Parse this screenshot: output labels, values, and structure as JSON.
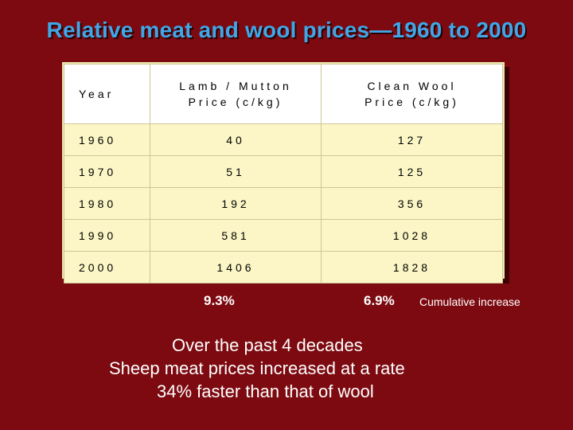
{
  "title": "Relative meat and wool prices—1960 to 2000",
  "table": {
    "headers": {
      "year": "Year",
      "lamb_line1": "Lamb / Mutton",
      "lamb_line2": "Price (c/kg)",
      "wool_line1": "Clean Wool",
      "wool_line2": "Price (c/kg)"
    },
    "rows": [
      {
        "year": "1960",
        "lamb": "40",
        "wool": "127"
      },
      {
        "year": "1970",
        "lamb": "51",
        "wool": "125"
      },
      {
        "year": "1980",
        "lamb": "192",
        "wool": "356"
      },
      {
        "year": "1990",
        "lamb": "581",
        "wool": "1028"
      },
      {
        "year": "2000",
        "lamb": "1406",
        "wool": "1828"
      }
    ]
  },
  "increase": {
    "lamb_pct": "9.3%",
    "wool_pct": "6.9%",
    "label": "Cumulative increase"
  },
  "conclusion": {
    "line1": "Over the past 4 decades",
    "line2": "Sheep meat prices increased at a rate",
    "line3": "34%  faster than that of wool"
  },
  "colors": {
    "background": "#7c0a10",
    "title": "#3fa7e8",
    "table_fill": "#fcf6c6"
  }
}
